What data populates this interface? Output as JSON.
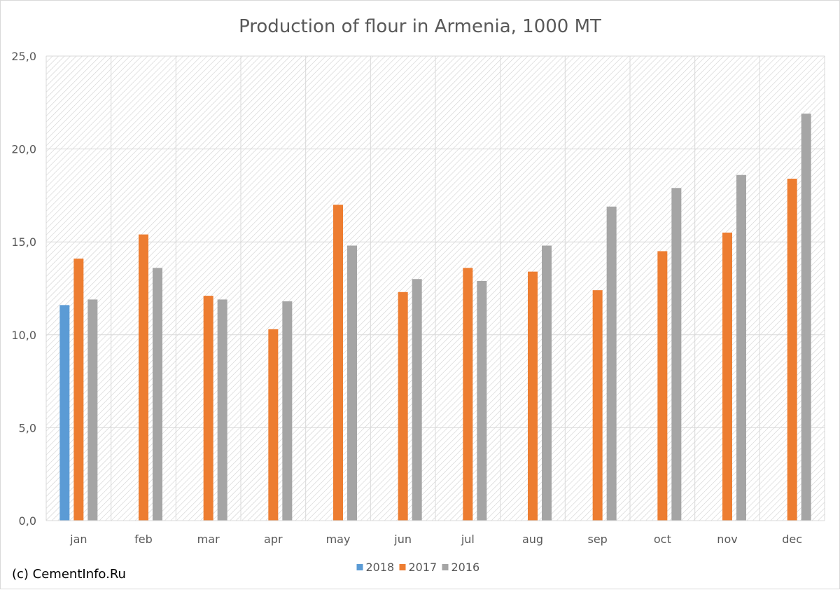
{
  "chart_data": {
    "type": "bar",
    "title": "Production of flour in Armenia, 1000 MT",
    "xlabel": "",
    "ylabel": "",
    "categories": [
      "jan",
      "feb",
      "mar",
      "apr",
      "may",
      "jun",
      "jul",
      "aug",
      "sep",
      "oct",
      "nov",
      "dec"
    ],
    "ylim": [
      0,
      25
    ],
    "yticks": [
      0,
      5,
      10,
      15,
      20,
      25
    ],
    "ytick_labels": [
      "0,0",
      "5,0",
      "10,0",
      "15,0",
      "20,0",
      "25,0"
    ],
    "grid": true,
    "legend_position": "bottom",
    "series": [
      {
        "name": "2018",
        "color": "#5b9bd5",
        "values": [
          11.6,
          null,
          null,
          null,
          null,
          null,
          null,
          null,
          null,
          null,
          null,
          null
        ]
      },
      {
        "name": "2017",
        "color": "#ed7d31",
        "values": [
          14.1,
          15.4,
          12.1,
          10.3,
          17.0,
          12.3,
          13.6,
          13.4,
          12.4,
          14.5,
          15.5,
          18.4
        ]
      },
      {
        "name": "2016",
        "color": "#a5a5a5",
        "values": [
          11.9,
          13.6,
          11.9,
          11.8,
          14.8,
          13.0,
          12.9,
          14.8,
          16.9,
          17.9,
          18.6,
          21.9
        ]
      }
    ]
  },
  "footer": {
    "credit": "(c) CementInfo.Ru"
  }
}
